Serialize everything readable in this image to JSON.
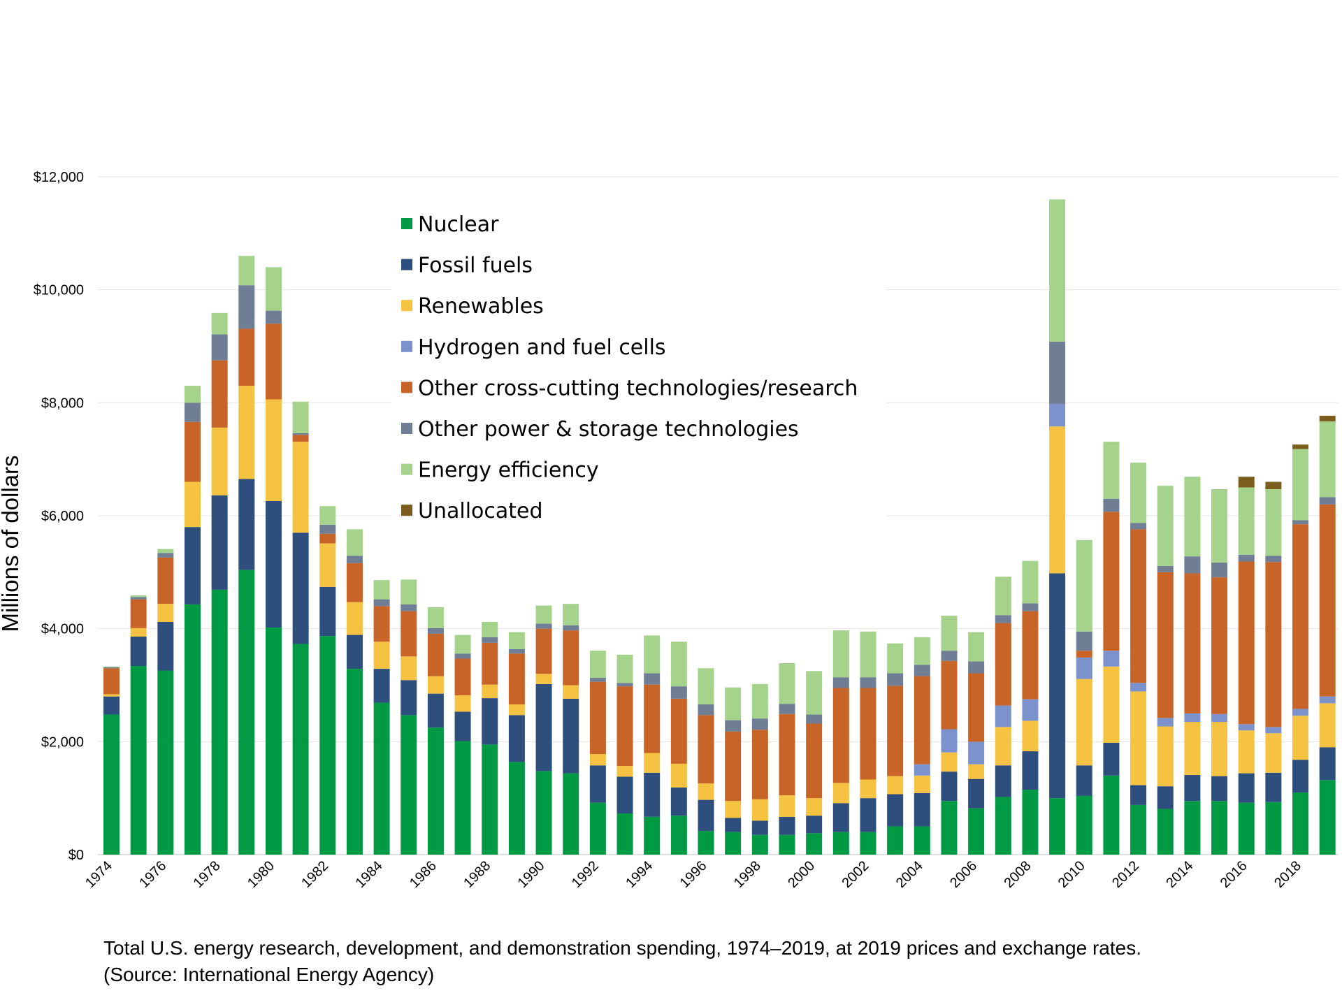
{
  "chart_data": {
    "type": "bar",
    "stacked": true,
    "ylabel": "Millions of dollars",
    "ylim": [
      0,
      12000
    ],
    "yticks": [
      0,
      2000,
      4000,
      6000,
      8000,
      10000,
      12000
    ],
    "ytick_labels": [
      "$0",
      "$2,000",
      "$4,000",
      "$6,000",
      "$8,000",
      "$10,000",
      "$12,000"
    ],
    "x_tick_labels": [
      "1974",
      "1976",
      "1978",
      "1980",
      "1982",
      "1984",
      "1986",
      "1988",
      "1990",
      "1992",
      "1994",
      "1996",
      "1998",
      "2000",
      "2002",
      "2004",
      "2006",
      "2008",
      "2010",
      "2012",
      "2014",
      "2016",
      "2018"
    ],
    "grid": "horizontal",
    "legend_position": "top-left inside",
    "categories": [
      "1974",
      "1975",
      "1976",
      "1977",
      "1978",
      "1979",
      "1980",
      "1981",
      "1982",
      "1983",
      "1984",
      "1985",
      "1986",
      "1987",
      "1988",
      "1989",
      "1990",
      "1991",
      "1992",
      "1993",
      "1994",
      "1995",
      "1996",
      "1997",
      "1998",
      "1999",
      "2000",
      "2001",
      "2002",
      "2003",
      "2004",
      "2005",
      "2006",
      "2007",
      "2008",
      "2009",
      "2010",
      "2011",
      "2012",
      "2013",
      "2014",
      "2015",
      "2016",
      "2017",
      "2018",
      "2019"
    ],
    "series": [
      {
        "name": "Nuclear",
        "color": "#009a44",
        "values": [
          2480,
          3340,
          3260,
          4430,
          4690,
          5040,
          4020,
          3730,
          3870,
          3290,
          2690,
          2470,
          2250,
          2010,
          1950,
          1640,
          1480,
          1440,
          920,
          730,
          670,
          690,
          420,
          400,
          350,
          350,
          380,
          400,
          400,
          500,
          500,
          950,
          820,
          1020,
          1150,
          1000,
          1040,
          1400,
          880,
          810,
          950,
          950,
          920,
          930,
          1100,
          1320
        ]
      },
      {
        "name": "Fossil fuels",
        "color": "#2e4e7e",
        "values": [
          320,
          520,
          860,
          1370,
          1670,
          1610,
          2240,
          1970,
          870,
          600,
          600,
          620,
          600,
          520,
          820,
          830,
          1540,
          1320,
          660,
          650,
          780,
          500,
          550,
          250,
          250,
          320,
          310,
          510,
          600,
          570,
          590,
          520,
          520,
          560,
          680,
          3980,
          540,
          580,
          350,
          400,
          460,
          440,
          520,
          520,
          580,
          580
        ]
      },
      {
        "name": "Renewables",
        "color": "#f5c242",
        "values": [
          40,
          150,
          320,
          800,
          1200,
          1650,
          1800,
          1610,
          770,
          580,
          480,
          420,
          310,
          290,
          240,
          190,
          180,
          240,
          200,
          190,
          350,
          420,
          290,
          300,
          380,
          380,
          310,
          360,
          330,
          320,
          310,
          340,
          260,
          680,
          540,
          2600,
          1530,
          1350,
          1660,
          1060,
          940,
          960,
          760,
          700,
          780,
          780
        ]
      },
      {
        "name": "Hydrogen and fuel cells",
        "color": "#7b92cc",
        "values": [
          0,
          0,
          0,
          0,
          0,
          0,
          0,
          0,
          0,
          0,
          0,
          0,
          0,
          0,
          0,
          0,
          0,
          0,
          0,
          0,
          0,
          0,
          0,
          0,
          0,
          0,
          0,
          0,
          0,
          0,
          200,
          410,
          400,
          380,
          380,
          400,
          380,
          280,
          150,
          150,
          150,
          140,
          110,
          110,
          120,
          120
        ]
      },
      {
        "name": "Other cross-cutting technologies/research",
        "color": "#c86428",
        "values": [
          460,
          510,
          820,
          1060,
          1190,
          1010,
          1340,
          120,
          170,
          690,
          630,
          800,
          750,
          650,
          740,
          900,
          800,
          970,
          1280,
          1410,
          1210,
          1150,
          1210,
          1230,
          1230,
          1440,
          1320,
          1680,
          1620,
          1600,
          1560,
          1210,
          1210,
          1460,
          1560,
          0,
          120,
          2460,
          2720,
          2580,
          2480,
          2420,
          2880,
          2920,
          3270,
          3400
        ]
      },
      {
        "name": "Other power & storage technologies",
        "color": "#6f7e94",
        "values": [
          20,
          40,
          80,
          340,
          460,
          770,
          230,
          30,
          160,
          130,
          120,
          120,
          100,
          90,
          100,
          80,
          90,
          90,
          70,
          60,
          200,
          220,
          190,
          200,
          200,
          180,
          160,
          190,
          190,
          220,
          200,
          180,
          210,
          140,
          140,
          1100,
          340,
          230,
          110,
          110,
          300,
          260,
          120,
          110,
          70,
          130
        ]
      },
      {
        "name": "Energy efficiency",
        "color": "#a5d38c",
        "values": [
          10,
          30,
          70,
          300,
          380,
          520,
          770,
          560,
          330,
          470,
          340,
          440,
          370,
          330,
          270,
          300,
          320,
          380,
          480,
          500,
          670,
          790,
          640,
          580,
          610,
          720,
          770,
          830,
          810,
          530,
          490,
          620,
          520,
          680,
          750,
          2520,
          1620,
          1010,
          1070,
          1420,
          1410,
          1300,
          1190,
          1180,
          1260,
          1340
        ]
      },
      {
        "name": "Unallocated",
        "color": "#7b5e1e",
        "values": [
          0,
          0,
          0,
          0,
          0,
          0,
          0,
          0,
          0,
          0,
          0,
          0,
          0,
          0,
          0,
          0,
          0,
          0,
          0,
          0,
          0,
          0,
          0,
          0,
          0,
          0,
          0,
          0,
          0,
          0,
          0,
          0,
          0,
          0,
          0,
          0,
          0,
          0,
          0,
          0,
          0,
          0,
          190,
          130,
          80,
          100
        ]
      }
    ]
  },
  "caption": {
    "line1": "Total U.S. energy research, development, and demonstration spending, 1974–2019, at 2019 prices and exchange rates.",
    "line2": "(Source: International Energy Agency)"
  }
}
